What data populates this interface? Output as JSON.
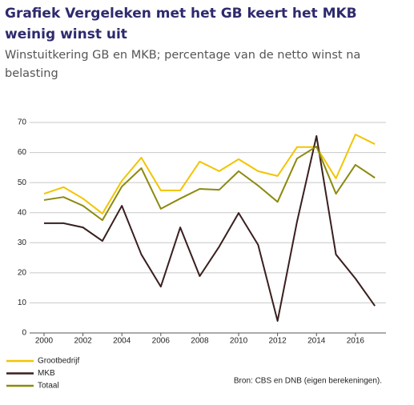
{
  "chart_data": {
    "type": "line",
    "title": "Grafiek Vergeleken met het GB keert het MKB weinig winst uit",
    "subtitle": "Winstuitkering GB en MKB; percentage van de netto winst na belasting",
    "source": "Bron: CBS en DNB (eigen berekeningen).",
    "x": [
      2000,
      2001,
      2002,
      2003,
      2004,
      2005,
      2006,
      2007,
      2008,
      2009,
      2010,
      2011,
      2012,
      2013,
      2014,
      2015,
      2016,
      2017
    ],
    "series": [
      {
        "name": "Grootbedrijf",
        "color": "#f2c400",
        "values": [
          46.3,
          48.5,
          44.7,
          39.7,
          50.6,
          58.3,
          47.4,
          47.4,
          57,
          53.8,
          57.8,
          53.8,
          52.2,
          61.8,
          61.8,
          51.4,
          66,
          62.8
        ]
      },
      {
        "name": "MKB",
        "color": "#3a1f1f",
        "values": [
          36.5,
          36.5,
          35.1,
          30.6,
          42.3,
          26.1,
          15.4,
          35.1,
          18.9,
          28.7,
          39.9,
          29.3,
          4,
          37,
          65.5,
          26.1,
          18.1,
          9
        ]
      },
      {
        "name": "Totaal",
        "color": "#8c8a0e",
        "values": [
          44.2,
          45.2,
          42.3,
          37.5,
          48.7,
          54.8,
          41.3,
          44.7,
          47.9,
          47.6,
          53.8,
          49,
          43.6,
          58,
          62,
          46.3,
          55.9,
          51.6
        ]
      }
    ],
    "xlim": [
      1999.26,
      2017.57
    ],
    "xticks": [
      2000,
      2002,
      2004,
      2006,
      2008,
      2010,
      2012,
      2014,
      2016
    ],
    "ylim": [
      0,
      70
    ],
    "yticks": [
      0,
      10,
      20,
      30,
      40,
      50,
      60,
      70
    ],
    "grid": true
  }
}
